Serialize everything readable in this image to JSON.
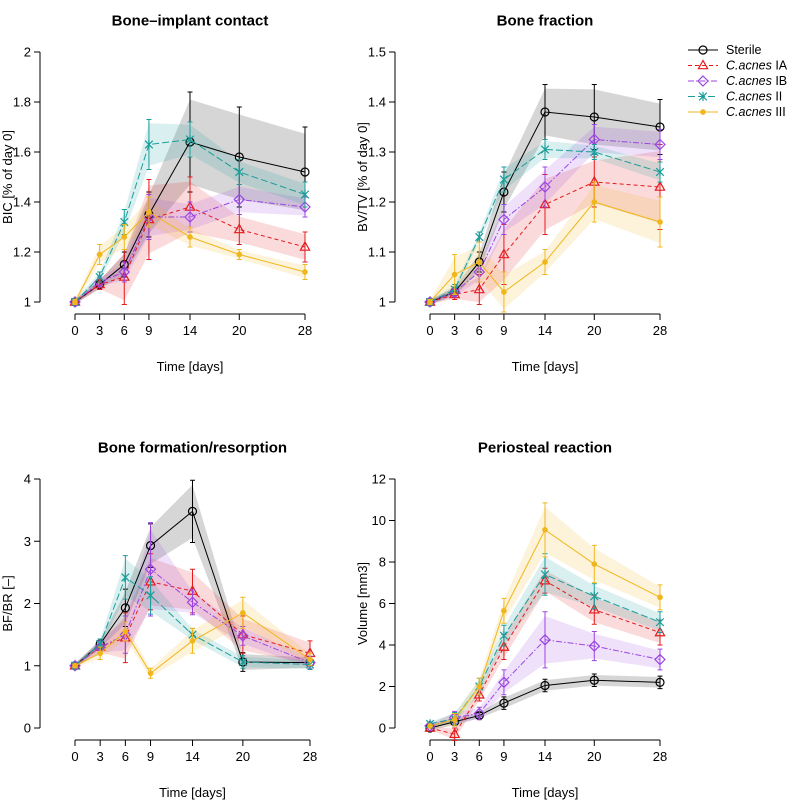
{
  "legend": [
    {
      "name": "Sterile",
      "italic": "",
      "suffix": "",
      "color": "#000000",
      "dash": "",
      "marker": "circle"
    },
    {
      "name": "C.acnes IA",
      "italic": "C.acnes",
      "suffix": " IA",
      "color": "#e41a1c",
      "dash": "4,3",
      "marker": "triangle"
    },
    {
      "name": "C.acnes IB",
      "italic": "C.acnes",
      "suffix": " IB",
      "color": "#9b45e0",
      "dash": "6,2,1.5,2",
      "marker": "diamond"
    },
    {
      "name": "C.acnes II",
      "italic": "C.acnes",
      "suffix": " II",
      "color": "#1b9e9a",
      "dash": "7,3",
      "marker": "cross"
    },
    {
      "name": "C.acnes III",
      "italic": "C.acnes",
      "suffix": " III",
      "color": "#f0b71c",
      "dash": "",
      "marker": "dot"
    }
  ],
  "chart_data": [
    {
      "type": "line",
      "title": "Bone–implant contact",
      "xlabel": "Time [days]",
      "ylabel": "BIC [% of day 0]",
      "x": [
        0,
        3,
        6,
        9,
        14,
        20,
        28
      ],
      "xlim": [
        0,
        28
      ],
      "ylim": [
        1.0,
        2.0
      ],
      "yticks": [
        1,
        1.2,
        1.4,
        1.6,
        1.8,
        2
      ],
      "ytick_labels": [
        "1",
        "1.2",
        "1.4",
        "1.6",
        "1.8",
        "2"
      ],
      "series": [
        {
          "name": "Sterile",
          "values": [
            1.0,
            1.07,
            1.15,
            1.35,
            1.64,
            1.58,
            1.52
          ],
          "err": [
            0.01,
            0.02,
            0.05,
            0.09,
            0.2,
            0.2,
            0.18
          ]
        },
        {
          "name": "C.acnes IA",
          "values": [
            1.0,
            1.07,
            1.1,
            1.33,
            1.38,
            1.29,
            1.22
          ],
          "err": [
            0.01,
            0.02,
            0.11,
            0.16,
            0.12,
            0.06,
            0.06
          ]
        },
        {
          "name": "C.acnes IB",
          "values": [
            1.0,
            1.08,
            1.12,
            1.34,
            1.34,
            1.41,
            1.38
          ],
          "err": [
            0.01,
            0.02,
            0.04,
            0.09,
            0.06,
            0.06,
            0.04
          ]
        },
        {
          "name": "C.acnes II",
          "values": [
            1.0,
            1.1,
            1.32,
            1.63,
            1.65,
            1.52,
            1.43
          ],
          "err": [
            0.01,
            0.02,
            0.05,
            0.1,
            0.07,
            0.05,
            0.05
          ]
        },
        {
          "name": "C.acnes III",
          "values": [
            1.0,
            1.19,
            1.26,
            1.36,
            1.26,
            1.19,
            1.12
          ],
          "err": [
            0.01,
            0.04,
            0.05,
            0.06,
            0.04,
            0.02,
            0.03
          ]
        }
      ]
    },
    {
      "type": "line",
      "title": "Bone fraction",
      "xlabel": "Time [days]",
      "ylabel": "BV/TV [% of day 0]",
      "x": [
        0,
        3,
        6,
        9,
        14,
        20,
        28
      ],
      "xlim": [
        0,
        28
      ],
      "ylim": [
        1.0,
        1.5
      ],
      "yticks": [
        1,
        1.1,
        1.2,
        1.3,
        1.4,
        1.5
      ],
      "ytick_labels": [
        "1",
        "1.1",
        "1.2",
        "1.3",
        "1.4",
        "1.5"
      ],
      "series": [
        {
          "name": "Sterile",
          "values": [
            1.0,
            1.02,
            1.08,
            1.22,
            1.38,
            1.37,
            1.35
          ],
          "err": [
            0.005,
            0.01,
            0.02,
            0.04,
            0.055,
            0.065,
            0.055
          ]
        },
        {
          "name": "C.acnes IA",
          "values": [
            1.0,
            1.015,
            1.025,
            1.095,
            1.195,
            1.24,
            1.23
          ],
          "err": [
            0.005,
            0.01,
            0.03,
            0.06,
            0.06,
            0.05,
            0.085
          ]
        },
        {
          "name": "C.acnes IB",
          "values": [
            1.0,
            1.02,
            1.06,
            1.165,
            1.23,
            1.325,
            1.315
          ],
          "err": [
            0.005,
            0.01,
            0.02,
            0.03,
            0.04,
            0.03,
            0.03
          ]
        },
        {
          "name": "C.acnes II",
          "values": [
            1.0,
            1.025,
            1.13,
            1.245,
            1.305,
            1.3,
            1.26
          ],
          "err": [
            0.005,
            0.01,
            0.01,
            0.025,
            0.02,
            0.015,
            0.02
          ]
        },
        {
          "name": "C.acnes III",
          "values": [
            1.0,
            1.055,
            1.08,
            1.02,
            1.08,
            1.2,
            1.16
          ],
          "err": [
            0.005,
            0.04,
            0.04,
            0.04,
            0.025,
            0.04,
            0.05
          ]
        }
      ]
    },
    {
      "type": "line",
      "title": "Bone formation/resorption",
      "xlabel": "Time [days]",
      "ylabel": "BF/BR [–]",
      "x": [
        0,
        3,
        6,
        9,
        14,
        20,
        28
      ],
      "xlim": [
        0,
        28
      ],
      "ylim": [
        0,
        4
      ],
      "yticks": [
        0,
        1,
        2,
        3,
        4
      ],
      "ytick_labels": [
        "0",
        "1",
        "2",
        "3",
        "4"
      ],
      "series": [
        {
          "name": "Sterile",
          "values": [
            1.0,
            1.35,
            1.93,
            2.93,
            3.48,
            1.06,
            1.05
          ],
          "err": [
            0.03,
            0.08,
            0.3,
            0.35,
            0.5,
            0.15,
            0.1
          ]
        },
        {
          "name": "C.acnes IA",
          "values": [
            1.0,
            1.3,
            1.45,
            2.35,
            2.2,
            1.5,
            1.2
          ],
          "err": [
            0.03,
            0.1,
            0.4,
            0.45,
            0.35,
            0.3,
            0.2
          ]
        },
        {
          "name": "C.acnes IB",
          "values": [
            1.0,
            1.3,
            1.5,
            2.55,
            2.02,
            1.48,
            1.05
          ],
          "err": [
            0.03,
            0.1,
            0.3,
            0.75,
            0.2,
            0.15,
            0.1
          ]
        },
        {
          "name": "C.acnes II",
          "values": [
            1.0,
            1.35,
            2.42,
            2.13,
            1.5,
            1.06,
            1.02
          ],
          "err": [
            0.03,
            0.08,
            0.35,
            0.3,
            0.1,
            0.1,
            0.08
          ]
        },
        {
          "name": "C.acnes III",
          "values": [
            1.0,
            1.2,
            1.55,
            0.88,
            1.4,
            1.85,
            1.1
          ],
          "err": [
            0.03,
            0.1,
            0.15,
            0.08,
            0.2,
            0.25,
            0.1
          ]
        }
      ]
    },
    {
      "type": "line",
      "title": "Periosteal reaction",
      "xlabel": "Time [days]",
      "ylabel": "Volume [mm3]",
      "x": [
        0,
        3,
        6,
        9,
        14,
        20,
        28
      ],
      "xlim": [
        0,
        28
      ],
      "ylim": [
        0,
        12
      ],
      "yticks": [
        0,
        2,
        4,
        6,
        8,
        10,
        12
      ],
      "ytick_labels": [
        "0",
        "2",
        "4",
        "6",
        "8",
        "10",
        "12"
      ],
      "series": [
        {
          "name": "Sterile",
          "values": [
            0.0,
            0.3,
            0.6,
            1.2,
            2.05,
            2.3,
            2.2
          ],
          "err": [
            0.05,
            0.2,
            0.15,
            0.3,
            0.3,
            0.3,
            0.3
          ]
        },
        {
          "name": "C.acnes IA",
          "values": [
            0.0,
            -0.3,
            1.6,
            3.9,
            7.1,
            5.7,
            4.6
          ],
          "err": [
            0.05,
            0.3,
            0.3,
            0.6,
            0.6,
            0.7,
            0.6
          ]
        },
        {
          "name": "C.acnes IB",
          "values": [
            0.1,
            0.5,
            0.7,
            2.2,
            4.25,
            3.95,
            3.3
          ],
          "err": [
            0.05,
            0.3,
            0.3,
            0.6,
            1.35,
            0.7,
            0.5
          ]
        },
        {
          "name": "C.acnes II",
          "values": [
            0.2,
            0.45,
            2.0,
            4.45,
            7.4,
            6.35,
            5.1
          ],
          "err": [
            0.05,
            0.3,
            0.4,
            0.5,
            1.0,
            0.6,
            0.5
          ]
        },
        {
          "name": "C.acnes III",
          "values": [
            0.1,
            0.4,
            2.0,
            5.65,
            9.55,
            7.9,
            6.3
          ],
          "err": [
            0.05,
            0.3,
            0.4,
            0.6,
            1.3,
            0.9,
            0.6
          ]
        }
      ]
    }
  ]
}
